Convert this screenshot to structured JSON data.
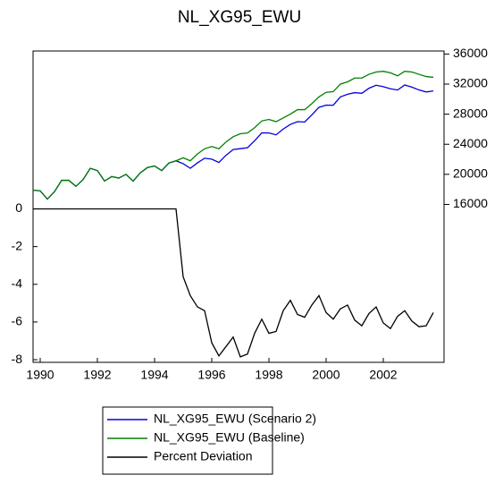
{
  "chart_data": {
    "type": "line",
    "title": "NL_XG95_EWU",
    "categories": [
      null,
      "1990",
      null,
      null,
      null,
      null,
      null,
      null,
      null,
      "1992",
      null,
      null,
      null,
      null,
      null,
      null,
      null,
      "1994",
      null,
      null,
      null,
      null,
      null,
      null,
      null,
      "1996",
      null,
      null,
      null,
      null,
      null,
      null,
      null,
      "1998",
      null,
      null,
      null,
      null,
      null,
      null,
      null,
      "2000",
      null,
      null,
      null,
      null,
      null,
      null,
      null,
      "2002",
      null,
      null,
      null,
      null,
      null,
      null,
      null
    ],
    "series": [
      {
        "name": "NL_XG95_EWU (Scenario 2)",
        "color": "#0000dd",
        "axis": "y2",
        "values": [
          17900,
          17800,
          16700,
          17700,
          19200,
          19200,
          18400,
          19300,
          20800,
          20500,
          19100,
          19700,
          19500,
          20000,
          19100,
          20200,
          20900,
          21100,
          20500,
          21500,
          21800,
          21420,
          20800,
          21520,
          22140,
          22020,
          21580,
          22530,
          23300,
          23410,
          23540,
          24470,
          25510,
          25500,
          25250,
          26020,
          26640,
          27000,
          26960,
          27900,
          28910,
          29200,
          29190,
          30300,
          30650,
          30860,
          30770,
          31450,
          31850,
          31660,
          31370,
          31210,
          31880,
          31600,
          31220,
          30950,
          31090
        ]
      },
      {
        "name": "NL_XG95_EWU (Baseline)",
        "color": "#008000",
        "axis": "y2",
        "values": [
          17900,
          17800,
          16700,
          17700,
          19200,
          19200,
          18400,
          19300,
          20800,
          20500,
          19100,
          19700,
          19500,
          20000,
          19100,
          20200,
          20900,
          21100,
          20500,
          21500,
          21800,
          22200,
          21800,
          22700,
          23400,
          23700,
          23400,
          24300,
          25000,
          25400,
          25500,
          26200,
          27100,
          27300,
          27000,
          27500,
          28000,
          28600,
          28600,
          29400,
          30300,
          30900,
          31000,
          32000,
          32300,
          32800,
          32800,
          33300,
          33600,
          33700,
          33500,
          33100,
          33700,
          33600,
          33300,
          33000,
          32900
        ]
      },
      {
        "name": "Percent Deviation",
        "color": "#000000",
        "axis": "y",
        "values": [
          0,
          0,
          0,
          0,
          0,
          0,
          0,
          0,
          0,
          0,
          0,
          0,
          0,
          0,
          0,
          0,
          0,
          0,
          0,
          0,
          0,
          -3.6,
          -4.6,
          -5.2,
          -5.4,
          -7.1,
          -7.8,
          -7.3,
          -6.8,
          -7.85,
          -7.7,
          -6.6,
          -5.85,
          -6.6,
          -6.5,
          -5.4,
          -4.85,
          -5.6,
          -5.75,
          -5.1,
          -4.6,
          -5.5,
          -5.85,
          -5.3,
          -5.1,
          -5.9,
          -6.2,
          -5.55,
          -5.2,
          -6.05,
          -6.35,
          -5.7,
          -5.4,
          -5.95,
          -6.25,
          -6.2,
          -5.5
        ]
      }
    ],
    "ylim": [
      -8.14,
      8.38
    ],
    "yticks": [
      0,
      -2,
      -4,
      -6,
      -8
    ],
    "y2lim": [
      -5000,
      36400
    ],
    "y2ticks": [
      16000,
      20000,
      24000,
      28000,
      32000,
      36000
    ],
    "grid": false
  }
}
